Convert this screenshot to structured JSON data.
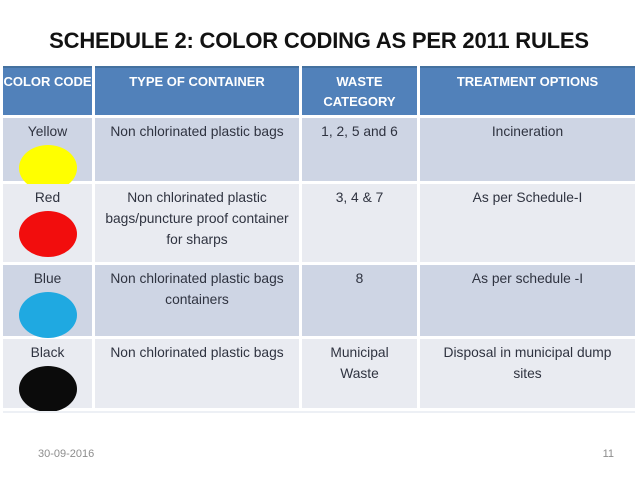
{
  "slide": {
    "title": "SCHEDULE 2: COLOR CODING AS PER 2011 RULES",
    "footer": {
      "date": "30-09-2016",
      "slide_number": "11"
    }
  },
  "table": {
    "headers": [
      "COLOR CODE",
      "TYPE OF CONTAINER",
      "WASTE CATEGORY",
      "TREATMENT OPTIONS"
    ],
    "rows": [
      {
        "name": "Yellow",
        "swatch": "#FFFF00",
        "container": "Non chlorinated plastic bags",
        "waste": "1, 2, 5 and 6",
        "treatment": "Incineration"
      },
      {
        "name": "Red",
        "swatch": "#F20D0D",
        "container": "Non chlorinated plastic bags/puncture proof container for sharps",
        "waste": "3, 4 & 7",
        "treatment": "As per Schedule-I"
      },
      {
        "name": "Blue",
        "swatch": "#1FA9E1",
        "container": "Non chlorinated plastic bags containers",
        "waste": "8",
        "treatment": "As per schedule -I"
      },
      {
        "name": "Black",
        "swatch": "#0B0B0B",
        "container": "Non chlorinated plastic bags",
        "waste": "Municipal Waste",
        "treatment": "Disposal in municipal dump sites"
      }
    ]
  },
  "colors": {
    "header_bg": "#5181BA",
    "row_band_dark": "#CED5E4",
    "row_band_light": "#E9EBF1",
    "title_text": "#121212",
    "body_text": "#2F3340",
    "footer_text": "#8D8D8D"
  }
}
